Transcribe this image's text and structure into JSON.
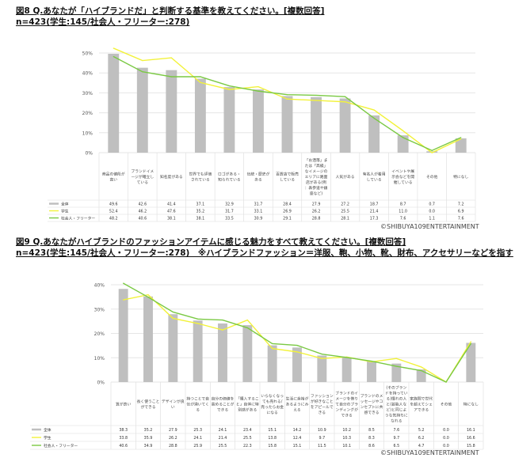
{
  "chart_data": [
    {
      "type": "bar+line",
      "title": "図8 Q.あなたが「ハイブランドだ」と判断する基準を教えてください。[複数回答]",
      "subtitle": "n=423(学生:145/社会人・フリーター:278)",
      "credit": "©SHIBUYA109ENTERTAINMENT",
      "ylim": [
        0,
        50
      ],
      "yticks": [
        "0%",
        "10%",
        "20%",
        "30%",
        "40%",
        "50%"
      ],
      "grid": true,
      "legend": "table-left",
      "categories": [
        "商品の値段が高い",
        "ブランドイメージが確立している",
        "知名度がある",
        "世界でも評価されている",
        "ロゴがある・知られている",
        "伝統・歴史がある",
        "百貨店で販売している",
        "「お洒落」または「高級」なイメージのエリアに路面店がある(例：表参道や銀座など)",
        "人気がある",
        "有名人が着用している",
        "イベントや展示会などを開催している",
        "その他",
        "特になし"
      ],
      "series": [
        {
          "name": "全体",
          "type": "bar",
          "color": "#bfbfbf",
          "values": [
            49.6,
            42.6,
            41.4,
            37.1,
            32.9,
            31.7,
            28.4,
            27.9,
            27.2,
            18.7,
            8.7,
            0.7,
            7.2
          ]
        },
        {
          "name": "学生",
          "type": "line",
          "color": "#f2f23a",
          "values": [
            52.4,
            46.2,
            47.6,
            35.2,
            31.7,
            33.1,
            26.9,
            26.2,
            25.5,
            21.4,
            11.0,
            0.0,
            6.9
          ]
        },
        {
          "name": "社会人・フリーター",
          "type": "line",
          "color": "#7ac943",
          "values": [
            48.2,
            40.6,
            38.1,
            38.1,
            33.5,
            30.9,
            29.1,
            28.8,
            28.1,
            17.3,
            7.6,
            1.1,
            7.6
          ]
        }
      ]
    },
    {
      "type": "bar+line",
      "title": "図9 Q.あなたがハイブランドのファッションアイテムに感じる魅力をすべて教えてください。[複数回答]",
      "subtitle": "n=423(学生:145/社会人・フリーター:278)　※ハイブランドファッション＝洋服、鞄、小物、靴、財布、アクセサリーなどを指す",
      "credit": "©SHIBUYA109ENTERTAINMENT",
      "ylim": [
        0,
        40
      ],
      "yticks": [
        "0%",
        "10%",
        "20%",
        "30%",
        "40%"
      ],
      "grid": true,
      "legend": "table-left",
      "categories": [
        "質が良い",
        "長く使うことができる",
        "デザインが良い",
        "持つことで自信が湧いてくる",
        "自分の価値を高めることができる",
        "「購入すること」自体に特別感がある",
        "いらなくなっても売れる/売ったらお金になる",
        "生活に余裕があるようにみえる",
        "ファッションが好きなことをアピールできる",
        "ブランドのイメージを借りて自分のブランディングができる",
        "ブランドのメッセージやコンセプトに共感できる",
        "(そのブランドを持っている)憧れの人と(芸能人など)と同じような気持ちになれる",
        "家族間で世代を超えてシェアできる",
        "その他",
        "特になし"
      ],
      "series": [
        {
          "name": "全体",
          "type": "bar",
          "color": "#bfbfbf",
          "values": [
            38.3,
            35.2,
            27.9,
            25.3,
            24.1,
            23.4,
            15.1,
            14.2,
            10.9,
            10.2,
            8.5,
            7.6,
            5.2,
            0.0,
            16.1
          ]
        },
        {
          "name": "学生",
          "type": "line",
          "color": "#f2f23a",
          "values": [
            33.8,
            35.9,
            26.2,
            24.1,
            21.4,
            25.5,
            13.8,
            12.4,
            9.7,
            10.3,
            8.3,
            9.7,
            6.2,
            0.0,
            16.6
          ]
        },
        {
          "name": "社会人・フリーター",
          "type": "line",
          "color": "#7ac943",
          "values": [
            40.6,
            34.9,
            28.8,
            25.9,
            25.5,
            22.3,
            15.8,
            15.1,
            11.5,
            10.1,
            8.6,
            6.5,
            4.7,
            0.0,
            15.8
          ]
        }
      ]
    }
  ]
}
